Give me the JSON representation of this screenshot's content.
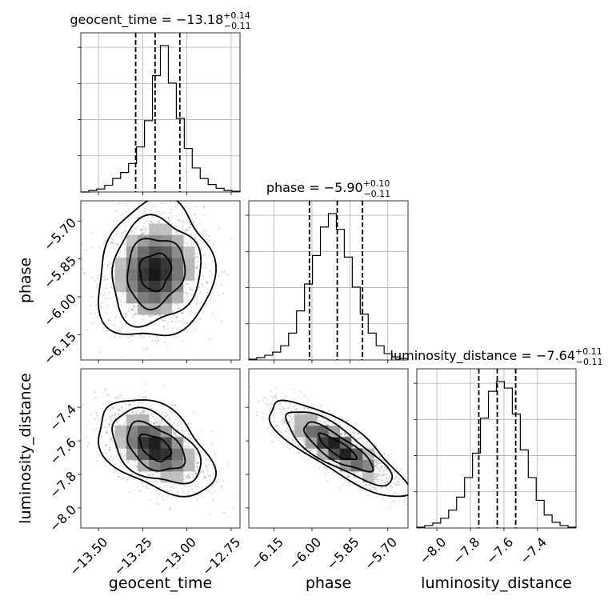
{
  "chart_data": {
    "type": "corner",
    "parameters": [
      "geocent_time",
      "phase",
      "luminosity_distance"
    ],
    "titles": [
      {
        "name": "geocent_time",
        "median": "−13.18",
        "upper": "+0.14",
        "lower": "−0.11"
      },
      {
        "name": "phase",
        "median": "−5.90",
        "upper": "+0.10",
        "lower": "−0.11"
      },
      {
        "name": "luminosity_distance",
        "median": "−7.64",
        "upper": "+0.11",
        "lower": "−0.11"
      }
    ],
    "ranges": [
      [
        -13.6,
        -12.7
      ],
      [
        -6.25,
        -5.62
      ],
      [
        -8.12,
        -7.17
      ]
    ],
    "ticks": [
      [
        -13.5,
        -13.25,
        -13.0,
        -12.75
      ],
      [
        -6.15,
        -6.0,
        -5.85,
        -5.7
      ],
      [
        -8.0,
        -7.8,
        -7.6,
        -7.4
      ]
    ],
    "tick_labels": [
      [
        "−13.50",
        "−13.25",
        "−13.00",
        "−12.75"
      ],
      [
        "−6.15",
        "−6.00",
        "−5.85",
        "−5.70"
      ],
      [
        "−8.0",
        "−7.8",
        "−7.6",
        "−7.4"
      ]
    ],
    "quantiles": [
      [
        -13.29,
        -13.18,
        -13.04
      ],
      [
        -6.01,
        -5.9,
        -5.8
      ],
      [
        -7.75,
        -7.64,
        -7.53
      ]
    ],
    "histograms": [
      {
        "bin_start": -13.6,
        "bin_width": 0.045,
        "counts": [
          0,
          2,
          4,
          9,
          18,
          26,
          38,
          60,
          95,
          155,
          195,
          145,
          98,
          58,
          32,
          18,
          10,
          5,
          2,
          1
        ]
      },
      {
        "bin_start": -6.25,
        "bin_width": 0.0315,
        "counts": [
          1,
          3,
          6,
          10,
          18,
          34,
          62,
          96,
          132,
          168,
          185,
          165,
          130,
          92,
          58,
          34,
          18,
          8,
          4,
          2
        ]
      },
      {
        "bin_start": -8.12,
        "bin_width": 0.0475,
        "counts": [
          1,
          3,
          6,
          12,
          22,
          38,
          62,
          92,
          135,
          168,
          180,
          172,
          140,
          96,
          62,
          34,
          16,
          7,
          3,
          1
        ]
      }
    ],
    "correlations": {
      "1_0": 0.1,
      "2_0": -0.45,
      "2_1": -0.82
    },
    "grid": true,
    "scatter": true,
    "contours": true
  }
}
